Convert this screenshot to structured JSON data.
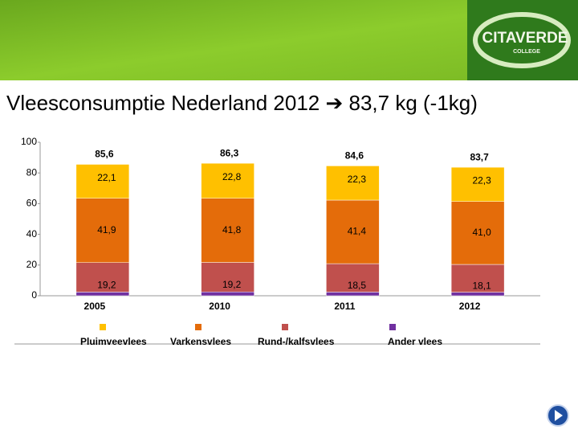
{
  "logo": {
    "name": "CITAVERDE",
    "sub": "COLLEGE"
  },
  "chart_data": {
    "type": "stacked-bar",
    "title": "Vleesconsumptie Nederland 2012 ➔ 83,7 kg (-1kg)",
    "categories": [
      "2005",
      "2010",
      "2011",
      "2012"
    ],
    "series": [
      {
        "name": "Ander vlees",
        "color": "#7030a0",
        "values": [
          2.4,
          2.5,
          2.4,
          2.3
        ]
      },
      {
        "name": "Rund-/kalfsvlees",
        "color": "#c0504d",
        "values": [
          19.2,
          19.2,
          18.5,
          18.1
        ],
        "value_labels": [
          "19,2",
          "19,2",
          "18,5",
          "18,1"
        ]
      },
      {
        "name": "Varkensvlees",
        "color": "#e46c0a",
        "values": [
          41.9,
          41.8,
          41.4,
          41.0
        ],
        "value_labels": [
          "41,9",
          "41,8",
          "41,4",
          "41,0"
        ]
      },
      {
        "name": "Pluimveevlees",
        "color": "#ffc000",
        "values": [
          22.1,
          22.8,
          22.3,
          22.3
        ],
        "value_labels": [
          "22,1",
          "22,8",
          "22,3",
          "22,3"
        ]
      }
    ],
    "totals": [
      85.6,
      86.3,
      84.6,
      83.7
    ],
    "total_labels": [
      "85,6",
      "86,3",
      "84,6",
      "83,7"
    ],
    "ylim": [
      0,
      100
    ],
    "yticks": [
      0,
      20,
      40,
      60,
      80,
      100
    ]
  }
}
